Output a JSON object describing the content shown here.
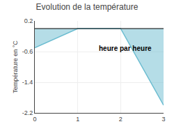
{
  "chart_data": {
    "type": "area",
    "title": "Evolution de la température",
    "xlabel": "heure par heure",
    "ylabel": "Température en °C",
    "x": [
      0,
      1,
      2,
      3
    ],
    "values": [
      -0.5,
      0.0,
      0.0,
      -2.0
    ],
    "y_ref": 0.0,
    "color": "#6bbcd0",
    "xlim": [
      0,
      3
    ],
    "xticks": [
      0,
      1,
      2,
      3
    ],
    "ylim": [
      -2.2,
      0.2
    ],
    "yticks": [
      0.2,
      -0.6,
      -1.4,
      -2.2
    ],
    "grid": true
  }
}
